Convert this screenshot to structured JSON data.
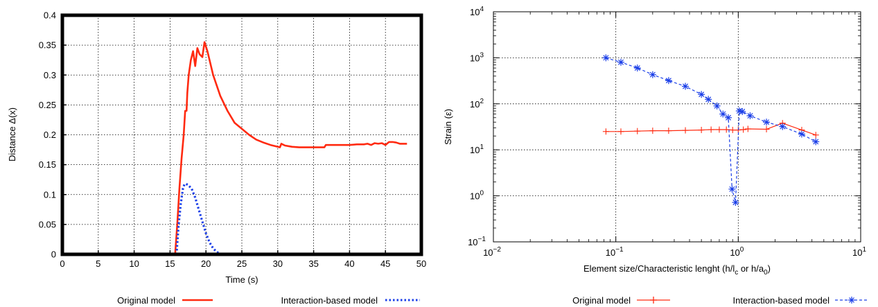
{
  "chart_data": [
    {
      "type": "line",
      "xlabel": "Time (s)",
      "ylabel": "Distance Δ(x)",
      "xlim": [
        0,
        50
      ],
      "ylim": [
        0,
        0.4
      ],
      "xticks": [
        "0",
        "5",
        "10",
        "15",
        "20",
        "25",
        "30",
        "35",
        "40",
        "45",
        "50"
      ],
      "yticks": [
        "0",
        "0.05",
        "0.1",
        "0.15",
        "0.2",
        "0.25",
        "0.3",
        "0.35",
        "0.4"
      ],
      "grid": true,
      "legend_position": "bottom",
      "series": [
        {
          "name": "Original model",
          "color": "#ff2a10",
          "style": "solid",
          "x": [
            15.7,
            16.0,
            16.3,
            16.6,
            16.9,
            17.1,
            17.3,
            17.4,
            17.6,
            17.9,
            18.2,
            18.5,
            18.8,
            19.1,
            19.5,
            19.8,
            20.2,
            21,
            22,
            23,
            24,
            25,
            26,
            27,
            28,
            29,
            30,
            30.3,
            30.5,
            31,
            32,
            33,
            34,
            35,
            36,
            36.5,
            36.7,
            37,
            38,
            39,
            40,
            41,
            42,
            42.5,
            43,
            43.5,
            44,
            44.5,
            45,
            45.5,
            46,
            46.5,
            47,
            48
          ],
          "y": [
            0,
            0.05,
            0.11,
            0.16,
            0.2,
            0.24,
            0.24,
            0.27,
            0.3,
            0.325,
            0.34,
            0.315,
            0.345,
            0.335,
            0.33,
            0.355,
            0.34,
            0.3,
            0.265,
            0.24,
            0.22,
            0.21,
            0.2,
            0.192,
            0.187,
            0.183,
            0.18,
            0.179,
            0.185,
            0.182,
            0.18,
            0.179,
            0.179,
            0.179,
            0.179,
            0.179,
            0.183,
            0.183,
            0.183,
            0.183,
            0.183,
            0.184,
            0.184,
            0.185,
            0.183,
            0.186,
            0.185,
            0.186,
            0.183,
            0.188,
            0.188,
            0.187,
            0.185,
            0.185
          ]
        },
        {
          "name": "Interaction-based model",
          "color": "#1a3ee8",
          "style": "dotted",
          "x": [
            15.9,
            16.2,
            16.5,
            16.8,
            17.0,
            17.2,
            17.5,
            18.0,
            18.5,
            19.0,
            19.5,
            20.0,
            20.5,
            21.0,
            21.5,
            22.0,
            22.5
          ],
          "y": [
            0,
            0.05,
            0.085,
            0.11,
            0.117,
            0.118,
            0.116,
            0.11,
            0.095,
            0.075,
            0.055,
            0.035,
            0.02,
            0.01,
            0.004,
            0.001,
            0
          ]
        }
      ]
    },
    {
      "type": "line",
      "xlabel_main": "Element size/Characteristic lenght (h/l",
      "xlabel_sub1": "c",
      "xlabel_mid": " or h/a",
      "xlabel_sub2": "0",
      "xlabel_end": ")",
      "ylabel": "Strain (ε)",
      "xscale": "log",
      "yscale": "log",
      "xlim": [
        0.01,
        10
      ],
      "ylim": [
        0.1,
        10000
      ],
      "xticks": [
        {
          "base": "10",
          "exp": "−2"
        },
        {
          "base": "10",
          "exp": "−1"
        },
        {
          "base": "10",
          "exp": "0"
        },
        {
          "base": "10",
          "exp": "1"
        }
      ],
      "yticks": [
        {
          "base": "10",
          "exp": "−1"
        },
        {
          "base": "10",
          "exp": "0"
        },
        {
          "base": "10",
          "exp": "1"
        },
        {
          "base": "10",
          "exp": "2"
        },
        {
          "base": "10",
          "exp": "3"
        },
        {
          "base": "10",
          "exp": "4"
        }
      ],
      "grid": true,
      "legend_position": "bottom",
      "series": [
        {
          "name": "Original model",
          "color": "#ff2a10",
          "style": "solid",
          "marker": "plus",
          "x": [
            0.083,
            0.11,
            0.15,
            0.2,
            0.27,
            0.37,
            0.5,
            0.6,
            0.7,
            0.8,
            0.9,
            1.0,
            1.1,
            1.2,
            1.7,
            2.3,
            3.3,
            4.3
          ],
          "y": [
            25,
            25,
            25.5,
            26,
            26,
            26.5,
            27,
            27.5,
            27.5,
            27.5,
            27,
            27,
            27.5,
            28.5,
            28,
            38,
            27,
            21
          ]
        },
        {
          "name": "Interaction-based model",
          "color": "#1a3ee8",
          "style": "dashed",
          "marker": "star",
          "x": [
            0.083,
            0.11,
            0.15,
            0.2,
            0.27,
            0.37,
            0.5,
            0.57,
            0.67,
            0.75,
            0.83,
            0.89,
            0.95,
            1.02,
            1.08,
            1.25,
            1.7,
            2.3,
            3.3,
            4.3
          ],
          "y": [
            1000,
            800,
            600,
            430,
            320,
            240,
            160,
            125,
            90,
            60,
            50,
            1.4,
            0.72,
            70,
            68,
            55,
            40,
            32,
            22,
            15
          ]
        }
      ]
    }
  ]
}
